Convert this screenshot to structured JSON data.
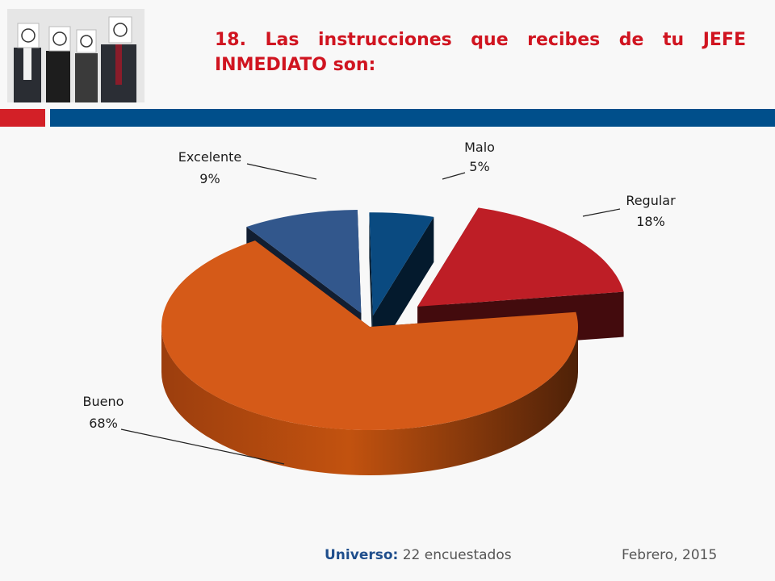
{
  "page": {
    "title": "18. Las instrucciones que recibes de tu JEFE INMEDIATO son:",
    "footer_universe_label": "Universo:",
    "footer_universe_value": "22 encuestados",
    "footer_date": "Febrero, 2015"
  },
  "chart_data": {
    "type": "pie",
    "style": "3d-exploded",
    "title": "",
    "slices": [
      {
        "label": "Malo",
        "value": 5,
        "pct_label": "5%",
        "color": "#0a4a80"
      },
      {
        "label": "Regular",
        "value": 18,
        "pct_label": "18%",
        "color": "#be1e26"
      },
      {
        "label": "Bueno",
        "value": 68,
        "pct_label": "68%",
        "color": "#d55a18"
      },
      {
        "label": "Excelente",
        "value": 9,
        "pct_label": "9%",
        "color": "#32578c"
      }
    ]
  }
}
